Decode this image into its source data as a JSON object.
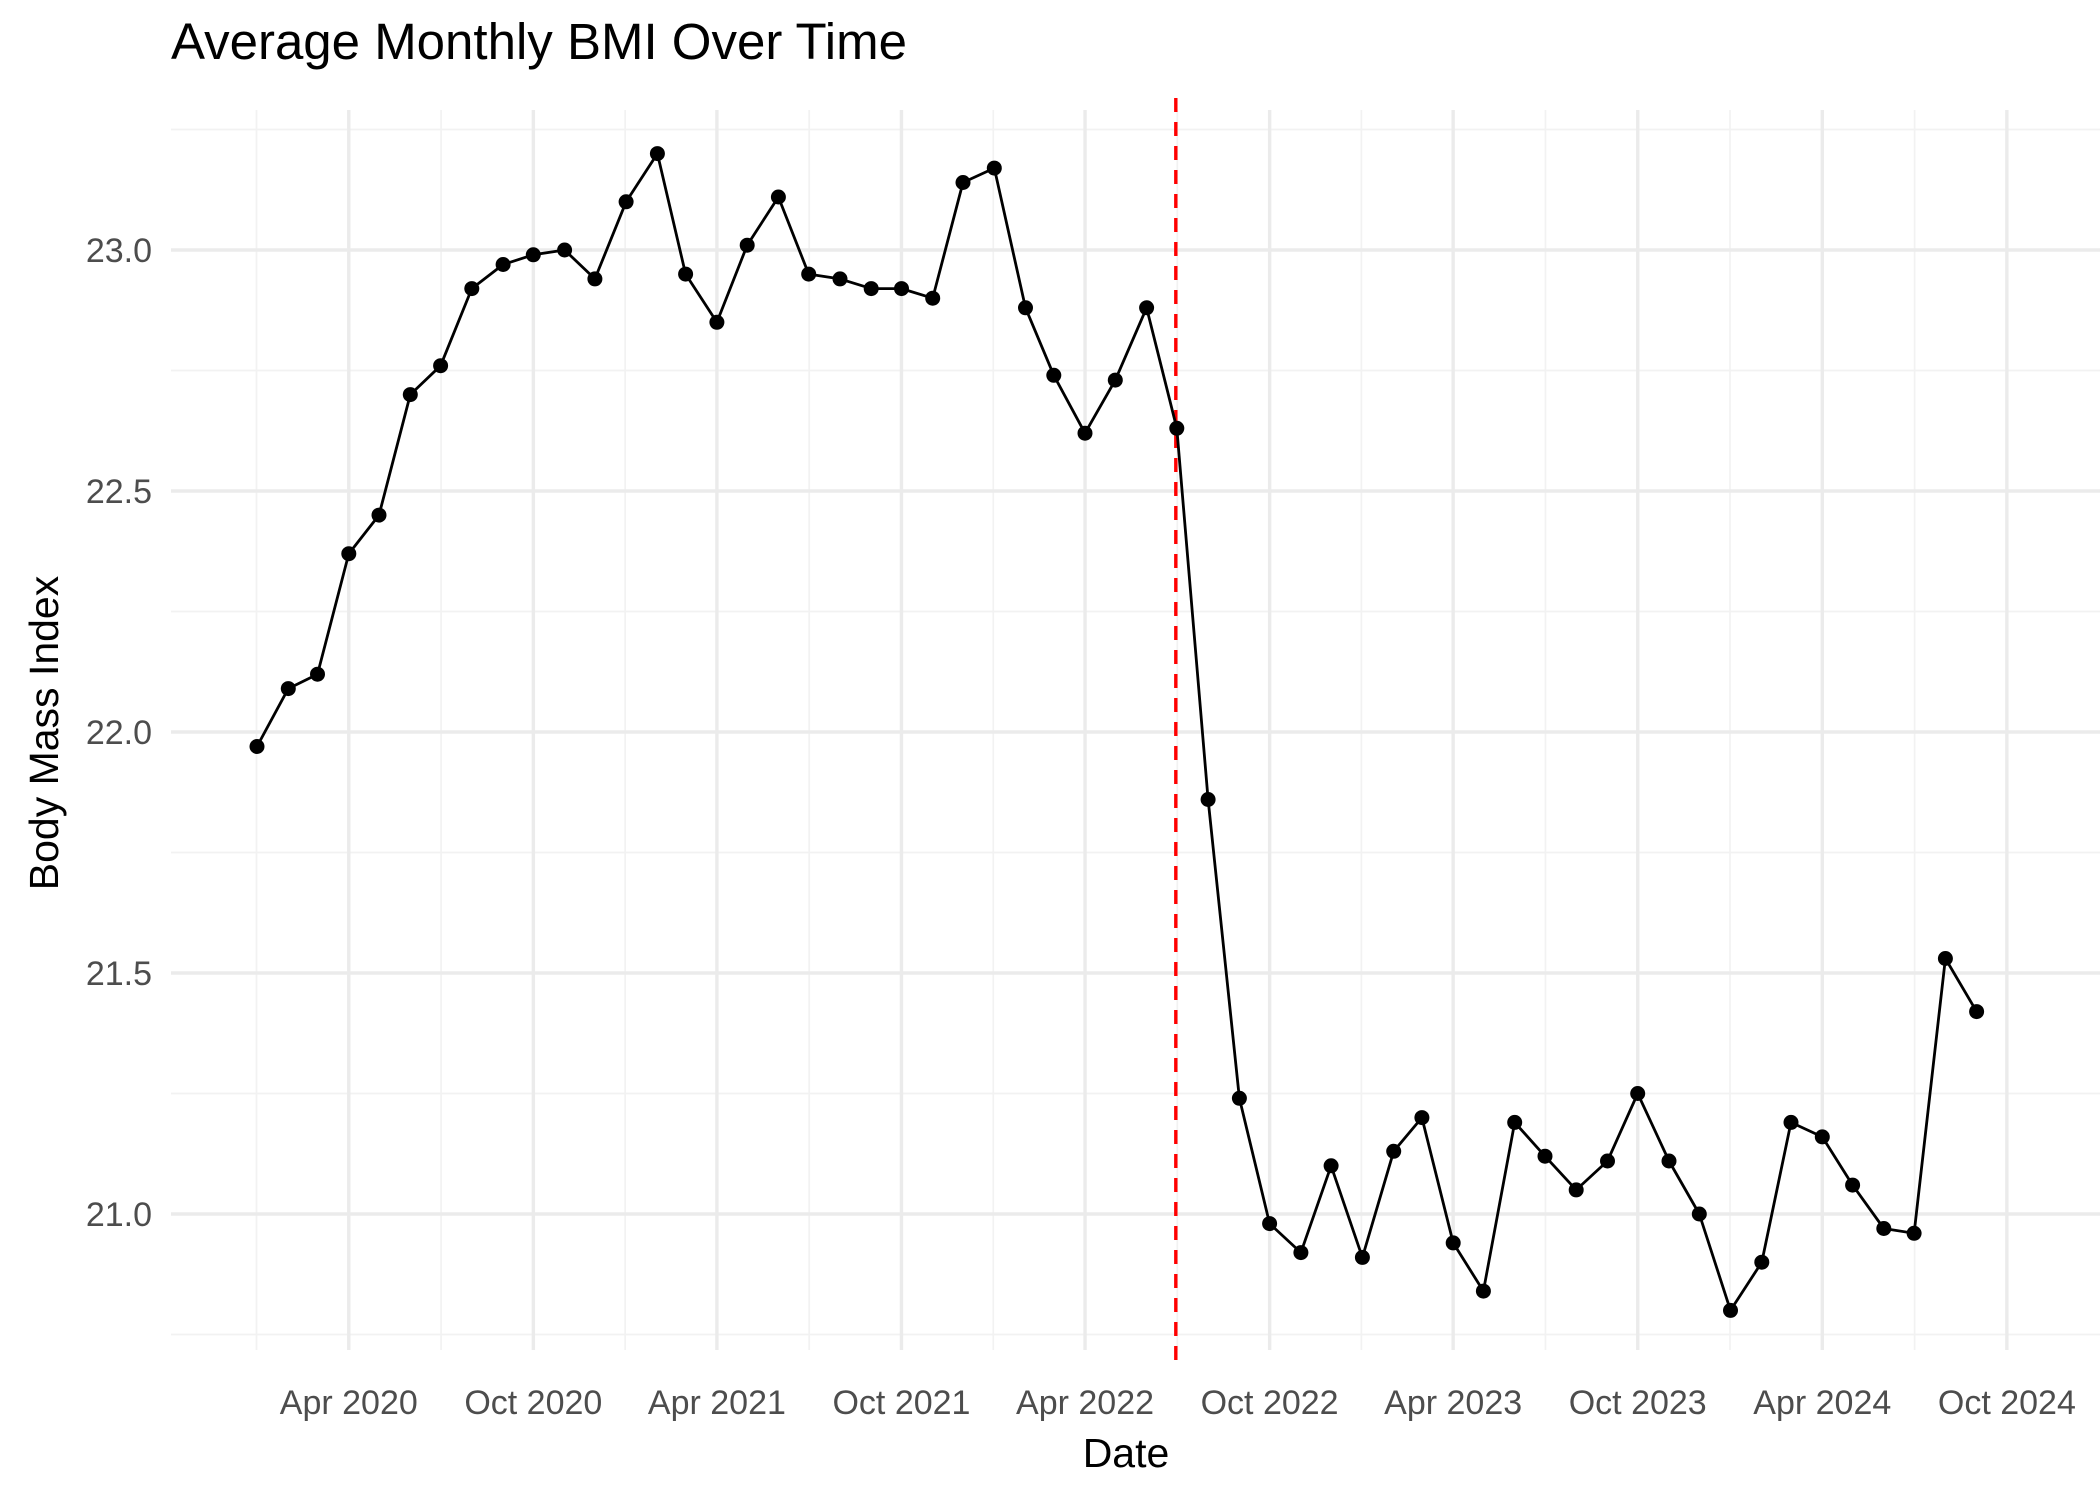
{
  "chart_data": {
    "type": "line",
    "title": "Average Monthly BMI Over Time",
    "xlabel": "Date",
    "ylabel": "Body Mass Index",
    "ylim": [
      20.75,
      23.25
    ],
    "xlim": [
      "2020-01-01",
      "2024-10-15"
    ],
    "y_ticks": [
      21.0,
      21.5,
      22.0,
      22.5,
      23.0
    ],
    "y_tick_labels": [
      "21.0",
      "21.5",
      "22.0",
      "22.5",
      "23.0"
    ],
    "x_ticks": [
      "2020-04-01",
      "2020-10-01",
      "2021-04-01",
      "2021-10-01",
      "2022-04-01",
      "2022-10-01",
      "2023-04-01",
      "2023-10-01",
      "2024-04-01",
      "2024-10-01"
    ],
    "x_tick_labels": [
      "Apr 2020",
      "Oct 2020",
      "Apr 2021",
      "Oct 2021",
      "Apr 2022",
      "Oct 2022",
      "Apr 2023",
      "Oct 2023",
      "Apr 2024",
      "Oct 2024"
    ],
    "grid": true,
    "reference_line": {
      "x": "2022-06-30",
      "color": "#ff0000",
      "style": "dashed"
    },
    "series": [
      {
        "x": [
          "2020-01-01",
          "2020-02-01",
          "2020-03-01",
          "2020-04-01",
          "2020-05-01",
          "2020-06-01",
          "2020-07-01",
          "2020-08-01",
          "2020-09-01",
          "2020-10-01",
          "2020-11-01",
          "2020-12-01",
          "2021-01-01",
          "2021-02-01",
          "2021-03-01",
          "2021-04-01",
          "2021-05-01",
          "2021-06-01",
          "2021-07-01",
          "2021-08-01",
          "2021-09-01",
          "2021-10-01",
          "2021-11-01",
          "2021-12-01",
          "2022-01-01",
          "2022-02-01",
          "2022-03-01",
          "2022-04-01",
          "2022-05-01",
          "2022-06-01",
          "2022-07-01",
          "2022-08-01",
          "2022-09-01",
          "2022-10-01",
          "2022-11-01",
          "2022-12-01",
          "2023-01-01",
          "2023-02-01",
          "2023-03-01",
          "2023-04-01",
          "2023-05-01",
          "2023-06-01",
          "2023-07-01",
          "2023-08-01",
          "2023-09-01",
          "2023-10-01",
          "2023-11-01",
          "2023-12-01",
          "2024-01-01",
          "2024-02-01",
          "2024-03-01",
          "2024-04-01",
          "2024-05-01",
          "2024-06-01",
          "2024-07-01",
          "2024-08-01",
          "2024-09-01"
        ],
        "values": [
          21.97,
          22.09,
          22.12,
          22.37,
          22.45,
          22.7,
          22.76,
          22.92,
          22.97,
          22.99,
          23.0,
          22.94,
          23.1,
          23.2,
          22.95,
          22.85,
          23.01,
          23.11,
          22.95,
          22.94,
          22.92,
          22.92,
          22.9,
          23.14,
          23.17,
          22.88,
          22.74,
          22.62,
          22.73,
          22.88,
          22.63,
          21.86,
          21.24,
          20.98,
          20.92,
          21.1,
          20.91,
          21.13,
          21.2,
          20.94,
          20.84,
          21.19,
          21.12,
          21.05,
          21.11,
          21.25,
          21.11,
          21.0,
          20.8,
          20.9,
          21.19,
          21.16,
          21.06,
          20.97,
          20.96,
          21.53,
          21.42
        ]
      }
    ]
  }
}
